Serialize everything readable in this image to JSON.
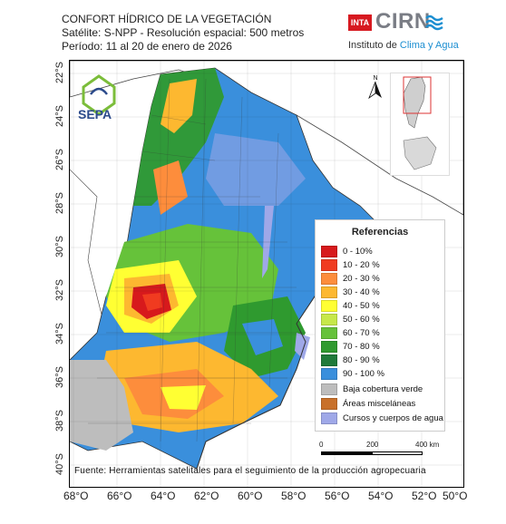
{
  "header": {
    "title": "CONFORT HÍDRICO DE LA VEGETACIÓN",
    "satellite": "Satélite: S-NPP - Resolución espacial: 500 metros",
    "period": "Período: 11 al 20 de enero de 2026"
  },
  "logos": {
    "inta": "INTA",
    "cirn": "CIRN",
    "institute_prefix": "Instituto de ",
    "institute_accent": "Clima y Agua",
    "sepa": "SEPA"
  },
  "north_label": "N",
  "legend": {
    "title": "Referencias",
    "items": [
      {
        "label": "0 - 10%",
        "color": "#d7191c"
      },
      {
        "label": "10 - 20 %",
        "color": "#f03b20"
      },
      {
        "label": "20 - 30 %",
        "color": "#fd8d3c"
      },
      {
        "label": "30 - 40 %",
        "color": "#fdb830"
      },
      {
        "label": "40 - 50 %",
        "color": "#ffff33"
      },
      {
        "label": "50 - 60 %",
        "color": "#c7e84a"
      },
      {
        "label": "60 - 70 %",
        "color": "#66c23a"
      },
      {
        "label": "70 - 80 %",
        "color": "#2f9a2f"
      },
      {
        "label": "80 - 90 %",
        "color": "#1f7a3a"
      },
      {
        "label": "90 - 100 %",
        "color": "#3a8fdc"
      },
      {
        "label": "Baja cobertura verde",
        "color": "#bdbdbd"
      },
      {
        "label": "Áreas misceláneas",
        "color": "#c8702a"
      },
      {
        "label": "Cursos y cuerpos de agua",
        "color": "#9fa8e8"
      }
    ]
  },
  "scale": {
    "start": "0",
    "mid": "200",
    "end": "400 km"
  },
  "source": "Fuente: Herramientas satelitales para el seguimiento de la producción agropecuaria",
  "x_ticks": [
    "68°O",
    "66°O",
    "64°O",
    "62°O",
    "60°O",
    "58°O",
    "56°O",
    "54°O",
    "52°O",
    "50°O"
  ],
  "y_ticks": [
    "22°S",
    "24°S",
    "26°S",
    "28°S",
    "30°S",
    "32°S",
    "34°S",
    "36°S",
    "38°S",
    "40°S"
  ]
}
